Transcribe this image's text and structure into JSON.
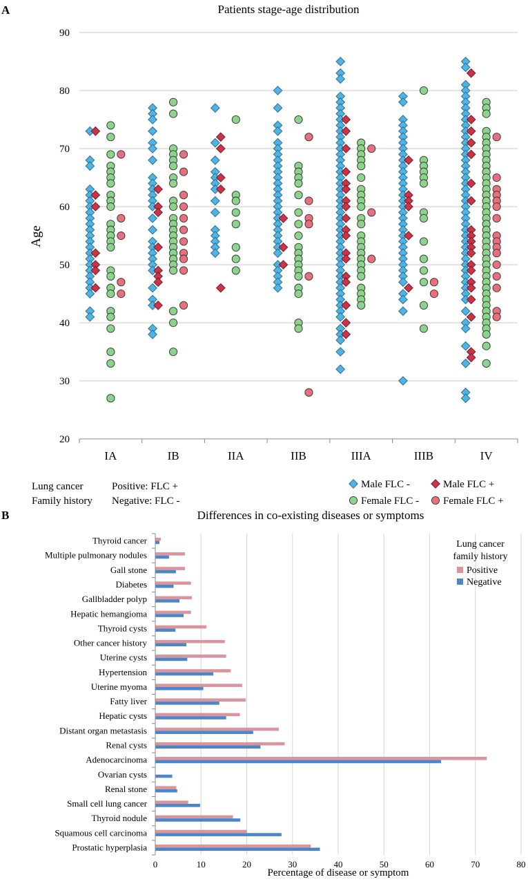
{
  "panel_a_letter": "A",
  "panel_b_letter": "B",
  "colors": {
    "male_neg": "#4FB3E3",
    "male_pos": "#C8344A",
    "female_neg": "#8CD38C",
    "female_pos": "#E8707E",
    "bar_pos": "#D9959B",
    "bar_neg": "#4A86C8",
    "grid": "#C8C8C8",
    "outline": "#222222"
  },
  "legend_a": {
    "row1_label": "Lung cancer",
    "row2_label": "Family history",
    "positive_text": "Positive:   FLC +",
    "negative_text": "Negative:   FLC -"
  },
  "chart_data": [
    {
      "type": "scatter",
      "title": "Patients stage-age distribution",
      "xlabel": "",
      "ylabel": "Age",
      "ylim": [
        20,
        90
      ],
      "yticks": [
        20,
        30,
        40,
        50,
        60,
        70,
        80,
        90
      ],
      "categories": [
        "IA",
        "IB",
        "IIA",
        "IIB",
        "IIIA",
        "IIIB",
        "IV"
      ],
      "grid": true,
      "legend_position": "bottom-right",
      "series": [
        {
          "name": "Male FLC -",
          "key": "male_neg",
          "marker": "diamond",
          "values": [
            [
              73,
              68,
              67,
              63,
              62,
              61,
              60,
              59,
              58,
              57,
              56,
              55,
              54,
              53,
              52,
              51,
              50,
              49,
              48,
              47,
              46,
              45,
              42,
              41
            ],
            [
              77,
              76,
              75,
              73,
              71,
              70,
              68,
              65,
              64,
              63,
              62,
              61,
              60,
              58,
              56,
              54,
              53,
              52,
              51,
              50,
              49,
              46,
              44,
              43,
              39,
              38
            ],
            [
              77,
              71,
              68,
              66,
              65,
              64,
              63,
              61,
              59,
              56,
              55,
              54,
              53,
              52
            ],
            [
              80,
              77,
              74,
              73,
              71,
              70,
              69,
              68,
              67,
              66,
              65,
              64,
              63,
              62,
              61,
              60,
              59,
              58,
              57,
              56,
              55,
              54,
              53,
              52,
              50,
              49,
              48,
              47,
              46
            ],
            [
              85,
              83,
              82,
              79,
              78,
              77,
              76,
              75,
              74,
              73,
              72,
              71,
              70,
              69,
              68,
              67,
              66,
              65,
              64,
              63,
              62,
              61,
              60,
              59,
              58,
              57,
              56,
              55,
              54,
              53,
              52,
              51,
              50,
              49,
              48,
              47,
              46,
              45,
              44,
              43,
              42,
              41,
              39,
              38,
              37,
              35,
              32
            ],
            [
              79,
              78,
              75,
              74,
              73,
              72,
              71,
              70,
              69,
              68,
              67,
              66,
              65,
              64,
              63,
              62,
              61,
              60,
              59,
              58,
              57,
              56,
              55,
              54,
              53,
              52,
              51,
              50,
              49,
              48,
              47,
              45,
              44,
              42,
              30
            ],
            [
              85,
              84,
              81,
              80,
              79,
              78,
              77,
              76,
              75,
              74,
              73,
              72,
              71,
              70,
              69,
              68,
              67,
              66,
              65,
              64,
              63,
              62,
              61,
              60,
              59,
              58,
              57,
              56,
              55,
              54,
              53,
              52,
              51,
              50,
              49,
              48,
              47,
              46,
              45,
              44,
              42,
              40,
              39,
              36,
              33,
              28,
              27
            ]
          ]
        },
        {
          "name": "Male FLC +",
          "key": "male_pos",
          "marker": "diamond",
          "values": [
            [
              73,
              62,
              60,
              52,
              50,
              49,
              46
            ],
            [
              63,
              60,
              59,
              53,
              49,
              48,
              47,
              43
            ],
            [
              72,
              70,
              65,
              63,
              46
            ],
            [
              58,
              53,
              50
            ],
            [
              75,
              73,
              70,
              66,
              64,
              63,
              61,
              60,
              58,
              56,
              55,
              52,
              51,
              48,
              47,
              43,
              40,
              38
            ],
            [
              68,
              62,
              61,
              60,
              55,
              46
            ],
            [
              83,
              75,
              73,
              71,
              69,
              64,
              61,
              56,
              55,
              54,
              53,
              52,
              50,
              49,
              47,
              46,
              44,
              41,
              35,
              34
            ]
          ]
        },
        {
          "name": "Female FLC -",
          "key": "female_neg",
          "marker": "circle",
          "values": [
            [
              74,
              72,
              69,
              67,
              66,
              65,
              64,
              62,
              61,
              60,
              57,
              56,
              55,
              54,
              53,
              49,
              48,
              46,
              45,
              42,
              41,
              39,
              35,
              33,
              27
            ],
            [
              78,
              76,
              70,
              69,
              68,
              67,
              65,
              64,
              61,
              60,
              58,
              57,
              56,
              55,
              54,
              53,
              52,
              51,
              50,
              49,
              42,
              40,
              35
            ],
            [
              75,
              62,
              61,
              59,
              57,
              53,
              51,
              49
            ],
            [
              75,
              67,
              66,
              65,
              64,
              62,
              59,
              57,
              55,
              53,
              52,
              51,
              50,
              49,
              48,
              46,
              45,
              40,
              39
            ],
            [
              71,
              70,
              69,
              68,
              67,
              65,
              63,
              62,
              61,
              60,
              58,
              57,
              55,
              54,
              53,
              52,
              51,
              50,
              49,
              48,
              46,
              45,
              44,
              43
            ],
            [
              80,
              68,
              67,
              66,
              65,
              64,
              59,
              58,
              54,
              51,
              49,
              47,
              43,
              39
            ],
            [
              78,
              77,
              76,
              73,
              72,
              71,
              70,
              69,
              68,
              67,
              66,
              65,
              64,
              63,
              62,
              61,
              60,
              59,
              58,
              57,
              56,
              55,
              54,
              53,
              52,
              51,
              50,
              49,
              48,
              47,
              46,
              45,
              44,
              43,
              42,
              41,
              40,
              39,
              38,
              36,
              33
            ]
          ]
        },
        {
          "name": "Female FLC +",
          "key": "female_pos",
          "marker": "circle",
          "values": [
            [
              69,
              58,
              55,
              47,
              45
            ],
            [
              69,
              66,
              62,
              60,
              58,
              56,
              54,
              52,
              51,
              49,
              43
            ],
            [],
            [
              72,
              61,
              58,
              57,
              48,
              28
            ],
            [
              70,
              59,
              51
            ],
            [
              47,
              45
            ],
            [
              72,
              65,
              63,
              62,
              61,
              60,
              58,
              55,
              54,
              53,
              52,
              50,
              48,
              46,
              42,
              41
            ]
          ]
        }
      ]
    },
    {
      "type": "bar",
      "orientation": "horizontal",
      "title": "Differences in co-existing diseases or symptoms",
      "xlabel": "Percentage of disease or symptom",
      "ylabel": "",
      "xlim": [
        0,
        80
      ],
      "xticks": [
        0,
        10,
        20,
        30,
        40,
        50,
        60,
        70,
        80
      ],
      "grid": true,
      "legend_title_1": "Lung cancer",
      "legend_title_2": "family history",
      "legend_position": "top-right",
      "categories": [
        "Thyroid cancer",
        "Multiple pulmonary nodules",
        "Gall stone",
        "Diabetes",
        "Gallbladder polyp",
        "Hepatic hemangioma",
        "Thyroid cysts",
        "Other cancer history",
        "Uterine cysts",
        "Hypertension",
        "Uterine myoma",
        "Fatty liver",
        "Hepatic cysts",
        "Distant organ metastasis",
        "Renal cysts",
        "Adenocarcinoma",
        "Ovarian cysts",
        "Renal stone",
        "Small cell lung cancer",
        "Thyroid nodule",
        "Squamous cell carcinoma",
        "Prostatic hyperplasia"
      ],
      "series": [
        {
          "name": "Positive",
          "key": "bar_pos",
          "values": [
            1.2,
            6.5,
            6.5,
            7.8,
            8.0,
            7.8,
            11.2,
            15.2,
            15.5,
            16.5,
            19.0,
            19.8,
            18.5,
            27.0,
            28.3,
            72.5,
            0,
            4.6,
            7.2,
            17.0,
            20.0,
            34.0
          ]
        },
        {
          "name": "Negative",
          "key": "bar_neg",
          "values": [
            0.9,
            3.0,
            4.5,
            4.0,
            5.3,
            6.2,
            4.4,
            6.8,
            7.0,
            12.7,
            10.5,
            14.0,
            15.5,
            21.4,
            23.0,
            62.5,
            3.7,
            4.8,
            9.8,
            18.6,
            27.6,
            36.0
          ]
        }
      ]
    }
  ]
}
